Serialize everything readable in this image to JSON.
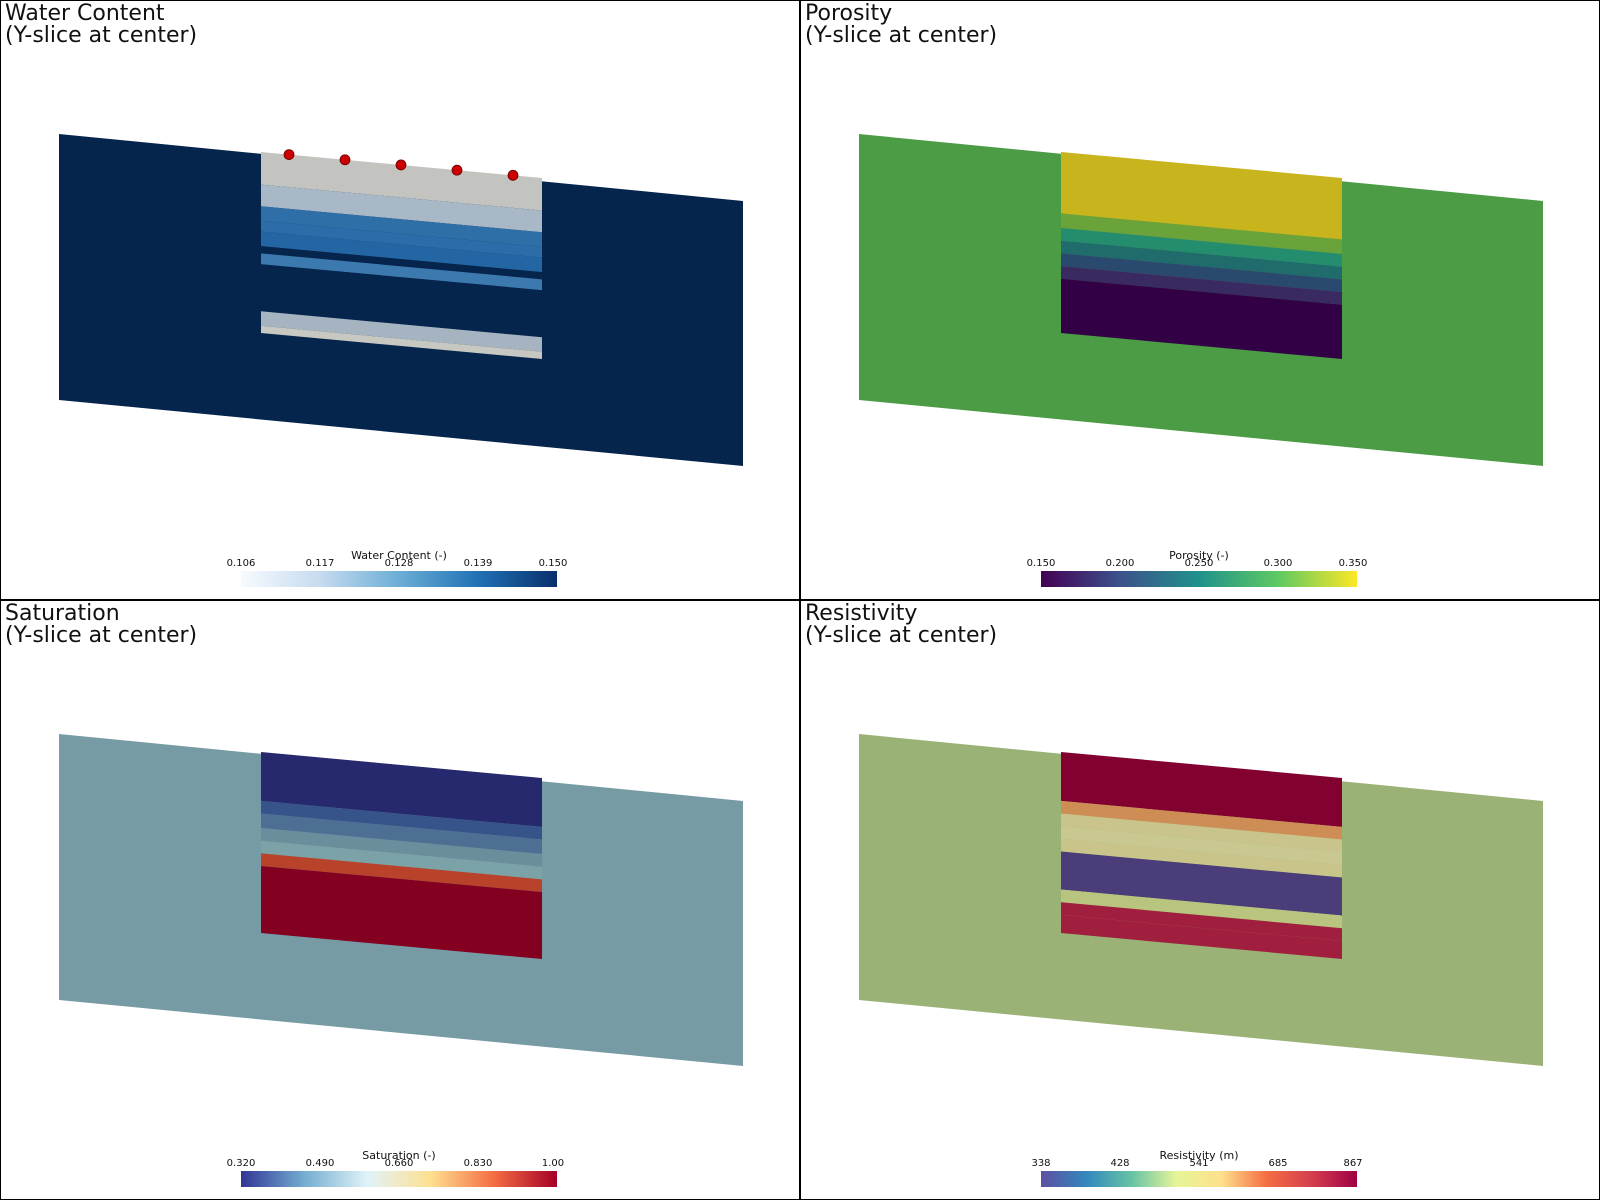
{
  "panels": [
    {
      "title_line1": "Water Content",
      "title_line2": "(Y-slice at center)",
      "background": "#06254d",
      "colorbar": {
        "label": "Water Content (-)",
        "ticks": [
          "0.106",
          "0.117",
          "0.128",
          "0.139",
          "0.150"
        ],
        "colors": [
          "#f7fbff",
          "#c6dbef",
          "#6baed6",
          "#2171b5",
          "#08306b"
        ]
      },
      "bands": [
        {
          "t": 0.0,
          "b": 0.18,
          "color": "#c3c3bf"
        },
        {
          "t": 0.18,
          "b": 0.3,
          "color": "#a8b8c6"
        },
        {
          "t": 0.3,
          "b": 0.38,
          "color": "#2f6fa8"
        },
        {
          "t": 0.38,
          "b": 0.44,
          "color": "#2c6ca8"
        },
        {
          "t": 0.44,
          "b": 0.52,
          "color": "#2466a4"
        },
        {
          "t": 0.52,
          "b": 0.56,
          "color": "#06254d"
        },
        {
          "t": 0.56,
          "b": 0.62,
          "color": "#3b79ae"
        },
        {
          "t": 0.62,
          "b": 0.88,
          "color": "#06254d"
        },
        {
          "t": 0.88,
          "b": 0.96,
          "color": "#a6b4c1"
        },
        {
          "t": 0.96,
          "b": 1.0,
          "color": "#c8c8c2"
        }
      ],
      "electrodes": 5,
      "electrode_color": "#cc0000"
    },
    {
      "title_line1": "Porosity",
      "title_line2": "(Y-slice at center)",
      "background": "#4c9c46",
      "colorbar": {
        "label": "Porosity (-)",
        "ticks": [
          "0.150",
          "0.200",
          "0.250",
          "0.300",
          "0.350"
        ],
        "colors": [
          "#440154",
          "#3b528b",
          "#21918c",
          "#5ec962",
          "#fde725"
        ]
      },
      "bands": [
        {
          "t": 0.0,
          "b": 0.34,
          "color": "#c8b41c"
        },
        {
          "t": 0.34,
          "b": 0.42,
          "color": "#6ba33b"
        },
        {
          "t": 0.42,
          "b": 0.49,
          "color": "#248d6e"
        },
        {
          "t": 0.49,
          "b": 0.56,
          "color": "#206b6b"
        },
        {
          "t": 0.56,
          "b": 0.63,
          "color": "#294a6e"
        },
        {
          "t": 0.63,
          "b": 0.7,
          "color": "#3a2a62"
        },
        {
          "t": 0.7,
          "b": 1.0,
          "color": "#320044"
        }
      ],
      "electrodes": 0,
      "electrode_color": "#cc0000"
    },
    {
      "title_line1": "Saturation",
      "title_line2": "(Y-slice at center)",
      "background": "#779ba5",
      "colorbar": {
        "label": "Saturation (-)",
        "ticks": [
          "0.320",
          "0.490",
          "0.660",
          "0.830",
          "1.00"
        ],
        "colors": [
          "#313695",
          "#74add1",
          "#e0f3f8",
          "#fee090",
          "#f46d43",
          "#a50026"
        ]
      },
      "bands": [
        {
          "t": 0.0,
          "b": 0.27,
          "color": "#26296d"
        },
        {
          "t": 0.27,
          "b": 0.34,
          "color": "#37548a"
        },
        {
          "t": 0.34,
          "b": 0.42,
          "color": "#4d6f93"
        },
        {
          "t": 0.42,
          "b": 0.49,
          "color": "#6b8e9c"
        },
        {
          "t": 0.49,
          "b": 0.56,
          "color": "#7ba2a7"
        },
        {
          "t": 0.56,
          "b": 0.63,
          "color": "#b8432a"
        },
        {
          "t": 0.63,
          "b": 1.0,
          "color": "#830021"
        }
      ],
      "electrodes": 0,
      "electrode_color": "#cc0000"
    },
    {
      "title_line1": "Resistivity",
      "title_line2": "(Y-slice at center)",
      "background": "#9bb276",
      "colorbar": {
        "label": "Resistivity (m)",
        "ticks": [
          "338",
          "428",
          "541",
          "685",
          "867"
        ],
        "colors": [
          "#5e4fa2",
          "#3288bd",
          "#66c2a5",
          "#e6f598",
          "#fee08b",
          "#f46d43",
          "#d53e4f",
          "#9e0142"
        ]
      },
      "bands": [
        {
          "t": 0.0,
          "b": 0.27,
          "color": "#820131"
        },
        {
          "t": 0.27,
          "b": 0.34,
          "color": "#cf8d56"
        },
        {
          "t": 0.34,
          "b": 0.41,
          "color": "#c8c48c"
        },
        {
          "t": 0.41,
          "b": 0.48,
          "color": "#c8c890"
        },
        {
          "t": 0.48,
          "b": 0.55,
          "color": "#c9c58a"
        },
        {
          "t": 0.55,
          "b": 0.76,
          "color": "#4a3d7a"
        },
        {
          "t": 0.76,
          "b": 0.83,
          "color": "#b9c47f"
        },
        {
          "t": 0.83,
          "b": 0.9,
          "color": "#a01e3e"
        },
        {
          "t": 0.9,
          "b": 1.0,
          "color": "#a01e3e"
        }
      ],
      "electrodes": 0,
      "electrode_color": "#cc0000"
    }
  ]
}
